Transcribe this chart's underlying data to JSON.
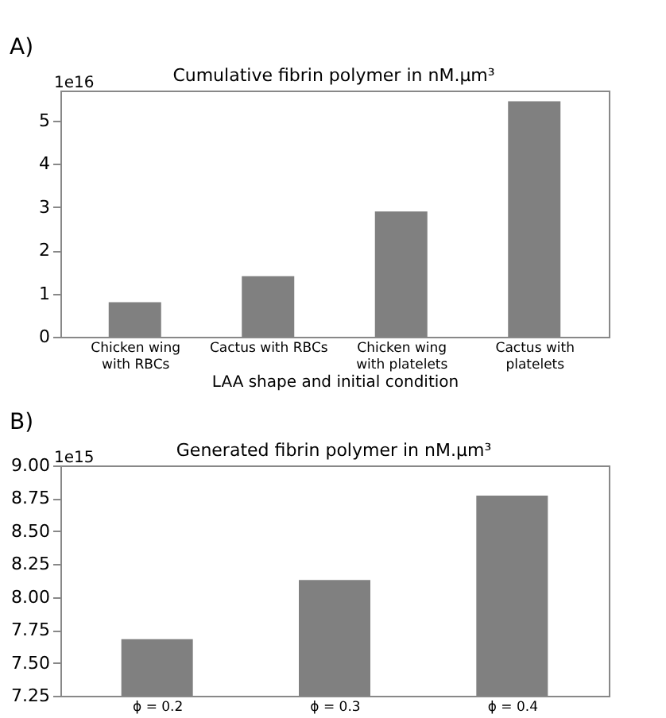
{
  "chart_data": [
    {
      "type": "bar",
      "title": "Cumulative fibrin polymer in nM.μm³",
      "xlabel": "LAA shape and initial condition",
      "categories": [
        "Chicken wing with RBCs",
        "Cactus with RBCs",
        "Chicken wing with platelets",
        "Cactus with platelets"
      ],
      "values": [
        0.8,
        1.4,
        2.9,
        5.45
      ],
      "color": "#808080",
      "ylim": [
        0,
        5.7
      ],
      "yticks": [
        0,
        1,
        2,
        3,
        4,
        5
      ],
      "grid": false,
      "annotations": [
        "A)",
        "1e16"
      ]
    },
    {
      "type": "bar",
      "title": "Generated fibrin polymer in nM.μm³",
      "categories": [
        "ϕ = 0.2",
        "ϕ = 0.3",
        "ϕ = 0.4"
      ],
      "values": [
        7.68,
        8.13,
        8.77
      ],
      "color": "#808080",
      "ylim": [
        7.25,
        9.0
      ],
      "yticks": [
        {
          "value": 7.25,
          "label": "7.25"
        },
        {
          "value": 7.5,
          "label": "7.50"
        },
        {
          "value": 7.75,
          "label": "7.75"
        },
        {
          "value": 8.0,
          "label": "8.00"
        },
        {
          "value": 8.25,
          "label": "8.25"
        },
        {
          "value": 8.5,
          "label": "8.50"
        },
        {
          "value": 8.75,
          "label": "8.75"
        },
        {
          "value": 9.0,
          "label": "9.00"
        }
      ],
      "grid": false,
      "annotations": [
        "B)",
        "1e15"
      ]
    }
  ]
}
